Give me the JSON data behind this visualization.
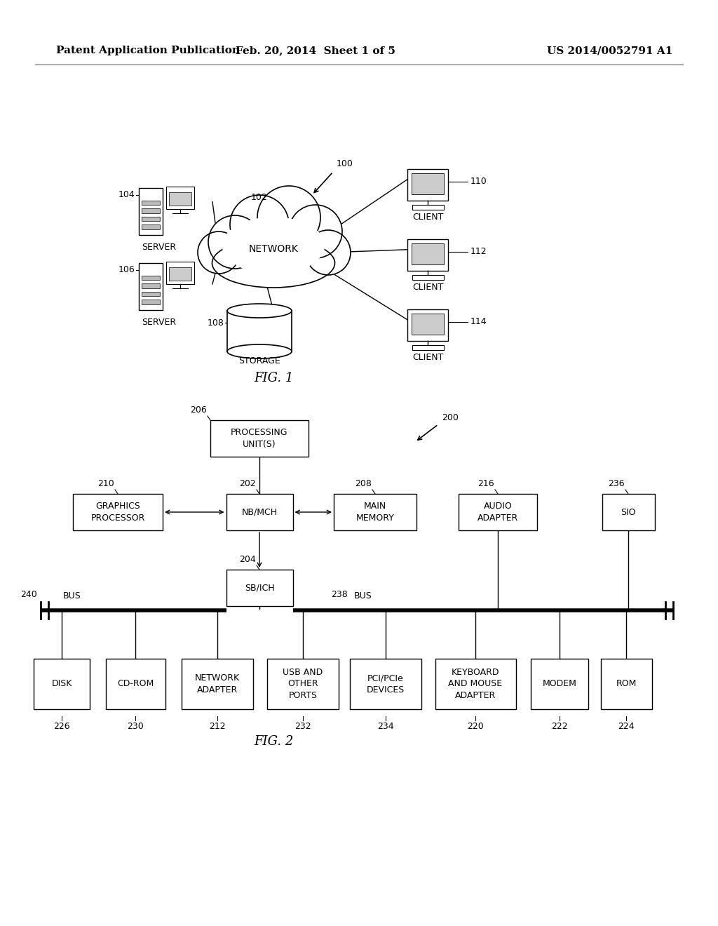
{
  "background_color": "#ffffff",
  "header_left": "Patent Application Publication",
  "header_mid": "Feb. 20, 2014  Sheet 1 of 5",
  "header_right": "US 2014/0052791 A1",
  "fig1_label": "FIG. 1",
  "fig2_label": "FIG. 2"
}
